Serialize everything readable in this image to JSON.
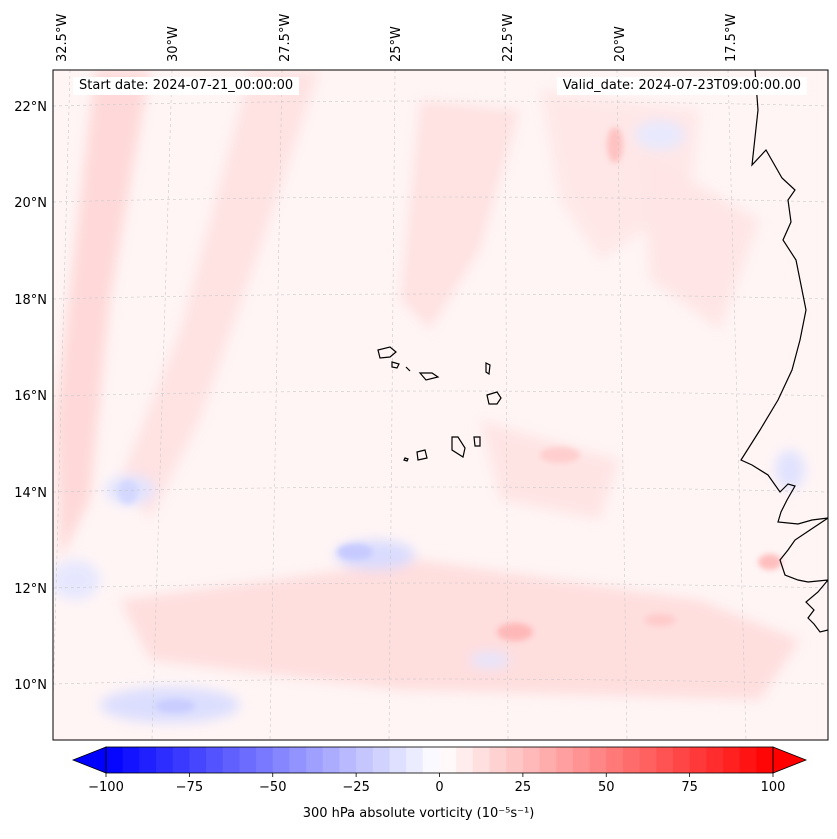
{
  "map": {
    "start_date": "Start date: 2024-07-21_00:00:00",
    "valid_date": "Valid_date: 2024-07-23T09:00:00.00",
    "longitude_labels": [
      "32.5°W",
      "30°W",
      "27.5°W",
      "25°W",
      "22.5°W",
      "20°W",
      "17.5°W"
    ],
    "latitude_labels": [
      "22°N",
      "20°N",
      "18°N",
      "16°N",
      "14°N",
      "12°N",
      "10°N"
    ],
    "variable": "300 hPa absolute vorticity",
    "units": "(10⁻⁵s⁻¹)",
    "region_features": [
      "Cape Verde Islands",
      "West African coast (Mauritania, Senegal, The Gambia, Guinea-Bissau)"
    ]
  },
  "colorbar": {
    "min": -100,
    "max": 100,
    "levels": 40,
    "extend": "both",
    "cmap": "bwr",
    "tick_values": [
      -100,
      -75,
      -50,
      -25,
      0,
      25,
      50,
      75,
      100
    ],
    "tick_labels": [
      "−100",
      "−75",
      "−50",
      "−25",
      "0",
      "25",
      "50",
      "75",
      "100"
    ],
    "label": "300 hPa absolute vorticity (10⁻⁵s⁻¹)"
  },
  "colors": {
    "negative": "#0000ff",
    "zero": "#ffffff",
    "positive": "#ff0000",
    "coastline": "#000000",
    "gridline": "#b0b0b0"
  }
}
